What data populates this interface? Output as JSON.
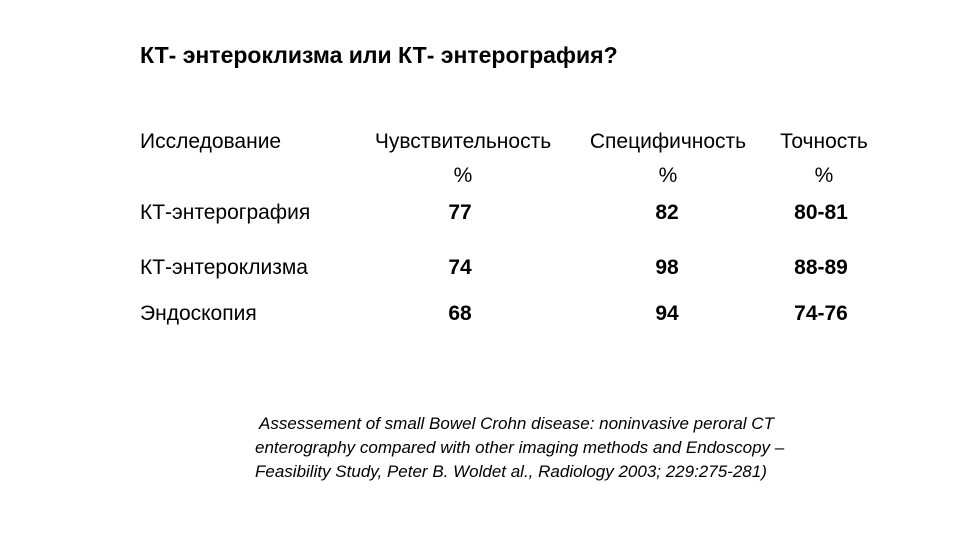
{
  "title": "КТ- энтероклизма или КТ- энтерография?",
  "table": {
    "row_header": "Исследование",
    "columns": [
      {
        "label": "Чувствительность",
        "unit": "%"
      },
      {
        "label": "Специфичность",
        "unit": "%"
      },
      {
        "label": "Точность",
        "unit": "%"
      }
    ],
    "rows": [
      {
        "label": "КТ-энтерография",
        "values": [
          "77",
          "82",
          "80-81"
        ]
      },
      {
        "label": "КТ-энтероклизма",
        "values": [
          "74",
          "98",
          "88-89"
        ]
      },
      {
        "label": "Эндоскопия",
        "values": [
          "68",
          "94",
          "74-76"
        ]
      }
    ]
  },
  "citation": {
    "line1": "Assessement of small Bowel Crohn disease: noninvasive peroral CT",
    "line2": "enterography compared with other imaging methods and Endoscopy –",
    "line3": "Feasibility Study, Peter B. Woldet al.,  Radiology 2003; 229:275-281)"
  }
}
